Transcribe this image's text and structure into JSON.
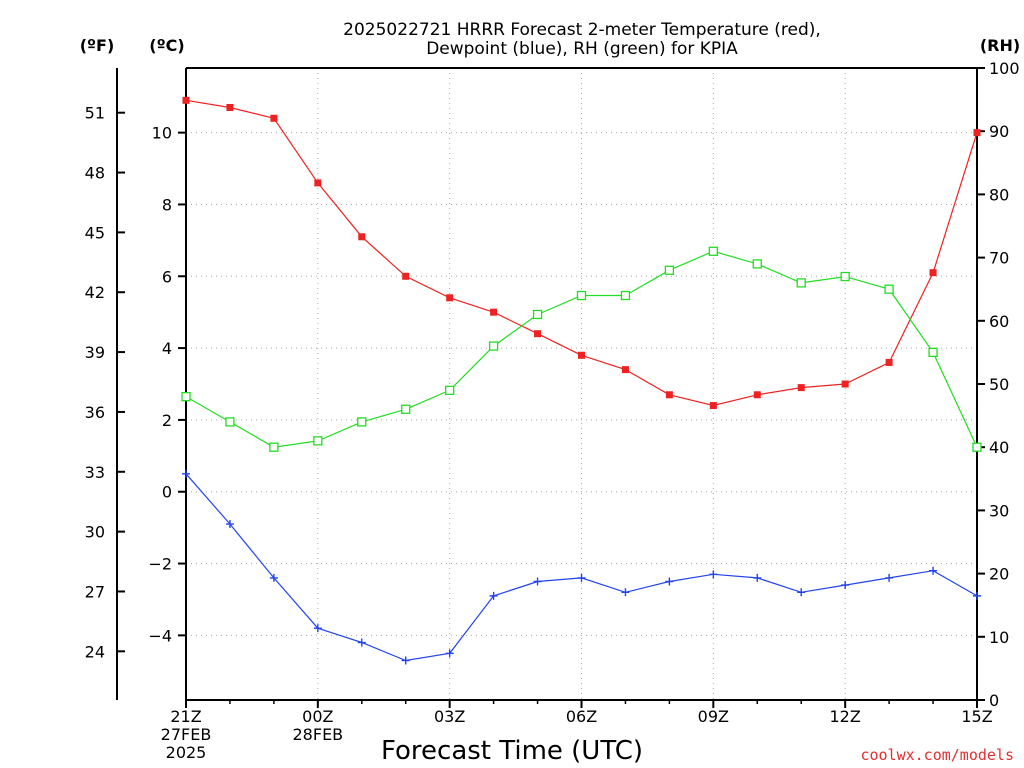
{
  "chart_data": {
    "type": "line",
    "title_line1": "2025022721 HRRR Forecast 2-meter Temperature (red),",
    "title_line2": "Dewpoint (blue), RH (green) for KPIA",
    "left_outer_unit": "(ºF)",
    "left_inner_unit": "(ºC)",
    "right_unit": "(RH)",
    "xlabel": "Forecast Time (UTC)",
    "credit": "coolwx.com/models",
    "x_range": [
      0,
      18
    ],
    "x_ticks": [
      {
        "x": 0,
        "lines": [
          "21Z",
          "27FEB",
          "2025"
        ]
      },
      {
        "x": 3,
        "lines": [
          "00Z",
          "28FEB"
        ]
      },
      {
        "x": 6,
        "lines": [
          "03Z"
        ]
      },
      {
        "x": 9,
        "lines": [
          "06Z"
        ]
      },
      {
        "x": 12,
        "lines": [
          "09Z"
        ]
      },
      {
        "x": 15,
        "lines": [
          "12Z"
        ]
      },
      {
        "x": 18,
        "lines": [
          "15Z"
        ]
      }
    ],
    "celsius_range": [
      -5.8,
      11.8
    ],
    "celsius_ticks": [
      -4,
      -2,
      0,
      2,
      4,
      6,
      8,
      10
    ],
    "fahrenheit_ticks": [
      24,
      27,
      30,
      33,
      36,
      39,
      42,
      45,
      48,
      51
    ],
    "rh_range": [
      0,
      100
    ],
    "rh_ticks": [
      0,
      10,
      20,
      30,
      40,
      50,
      60,
      70,
      80,
      90,
      100
    ],
    "grid": true,
    "series": [
      {
        "name": "Temperature",
        "color": "#ee2222",
        "axis": "celsius",
        "marker": "filled-square",
        "values": [
          10.9,
          10.7,
          10.4,
          8.6,
          7.1,
          6.0,
          5.4,
          5.0,
          4.4,
          3.8,
          3.4,
          2.7,
          2.4,
          2.7,
          2.9,
          3.0,
          3.6,
          6.1,
          10.0
        ]
      },
      {
        "name": "Dewpoint",
        "color": "#2244ee",
        "axis": "celsius",
        "marker": "plus",
        "values": [
          0.5,
          -0.9,
          -2.4,
          -3.8,
          -4.2,
          -4.7,
          -4.5,
          -2.9,
          -2.5,
          -2.4,
          -2.8,
          -2.5,
          -2.3,
          -2.4,
          -2.8,
          -2.6,
          -2.4,
          -2.2,
          -2.9
        ]
      },
      {
        "name": "RH",
        "color": "#22dd22",
        "axis": "rh",
        "marker": "open-square",
        "values": [
          48,
          44,
          40,
          41,
          44,
          46,
          49,
          56,
          61,
          64,
          64,
          68,
          71,
          69,
          66,
          67,
          65,
          55,
          40
        ]
      }
    ]
  }
}
